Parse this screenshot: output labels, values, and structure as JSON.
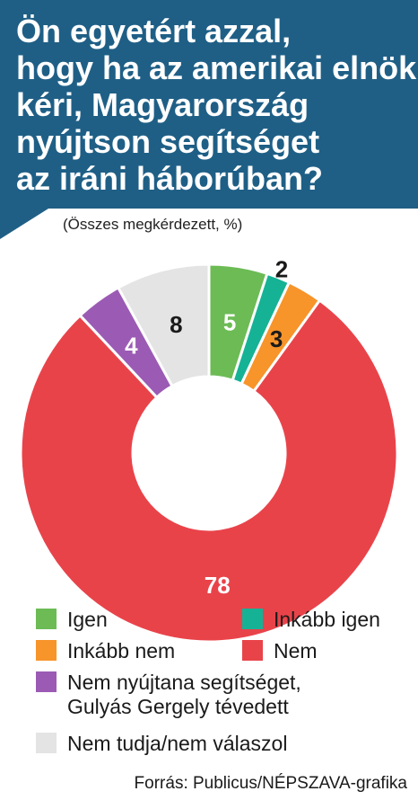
{
  "header": {
    "title_lines": [
      "Ön egyetért azzal,",
      "hogy ha az amerikai elnök",
      "kéri, Magyarország",
      "nyújtson segítséget",
      "az iráni háborúban?"
    ],
    "subtitle": "(Összes megkérdezett, %)"
  },
  "colors": {
    "header_bg": "#1f5f86",
    "igen": "#6cbb55",
    "inkabb_igen": "#16b295",
    "inkabb_nem": "#f7942a",
    "nem": "#e9434a",
    "nem_nyujtana": "#9b5bb4",
    "nem_tudja": "#e4e4e4"
  },
  "chart_data": {
    "type": "pie",
    "variant": "donut",
    "title": "Ön egyetért azzal, hogy ha az amerikai elnök kéri, Magyarország nyújtson segítséget az iráni háborúban?",
    "subtitle": "(Összes megkérdezett, %)",
    "unit": "%",
    "slices": [
      {
        "label": "Igen",
        "value": 5,
        "color": "#6cbb55"
      },
      {
        "label": "Inkább igen",
        "value": 2,
        "color": "#16b295"
      },
      {
        "label": "Inkább nem",
        "value": 3,
        "color": "#f7942a"
      },
      {
        "label": "Nem",
        "value": 78,
        "color": "#e9434a"
      },
      {
        "label": "Nem nyújtana segítséget, Gulyás Gergely tévedett",
        "value": 4,
        "color": "#9b5bb4"
      },
      {
        "label": "Nem tudja/nem válaszol",
        "value": 8,
        "color": "#e4e4e4"
      }
    ],
    "legend": [
      {
        "label_lines": [
          "Igen"
        ],
        "color": "#6cbb55"
      },
      {
        "label_lines": [
          "Inkább igen"
        ],
        "color": "#16b295"
      },
      {
        "label_lines": [
          "Inkább nem"
        ],
        "color": "#f7942a"
      },
      {
        "label_lines": [
          "Nem"
        ],
        "color": "#e9434a"
      },
      {
        "label_lines": [
          "Nem nyújtana segítséget,",
          "Gulyás Gergely tévedett"
        ],
        "color": "#9b5bb4"
      },
      {
        "label_lines": [
          "Nem tudja/nem válaszol"
        ],
        "color": "#e4e4e4"
      }
    ],
    "legend_placement": "bottom"
  },
  "source": "Forrás: Publicus/NÉPSZAVA-grafika"
}
